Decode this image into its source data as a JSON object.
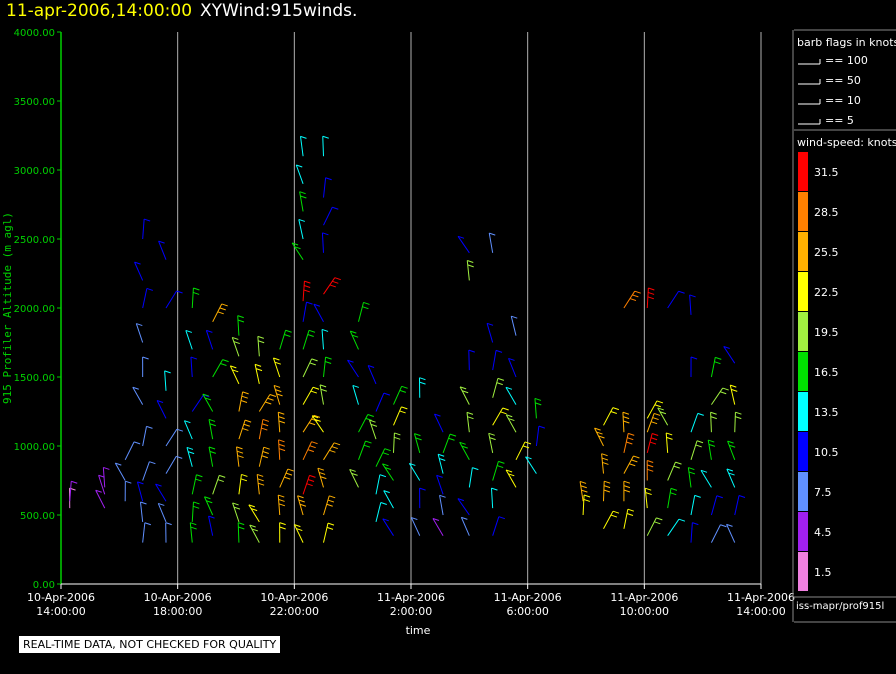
{
  "header": {
    "timestamp": "11-apr-2006,14:00:00",
    "product": "XYWind:915winds."
  },
  "quality_note": "REAL-TIME DATA, NOT CHECKED FOR QUALITY",
  "source_label": "iss-mapr/prof915l",
  "colors": {
    "background": "#000000",
    "axis": "#00d000",
    "gridline": "#b0b0b0"
  },
  "legend": {
    "barb_title": "barb flags in knots",
    "barbs": [
      "== 100",
      "== 50",
      "== 10",
      "== 5"
    ],
    "speed_title": "wind-speed: knots",
    "speed_bins": [
      {
        "label": "31.5",
        "color": "#ff0000"
      },
      {
        "label": "28.5",
        "color": "#ff8000"
      },
      {
        "label": "25.5",
        "color": "#ffb000"
      },
      {
        "label": "22.5",
        "color": "#ffff00"
      },
      {
        "label": "19.5",
        "color": "#a0f040"
      },
      {
        "label": "16.5",
        "color": "#00e000"
      },
      {
        "label": "13.5",
        "color": "#00ffff"
      },
      {
        "label": "10.5",
        "color": "#0000ff"
      },
      {
        "label": "7.5",
        "color": "#6090ff"
      },
      {
        "label": "4.5",
        "color": "#a020f0"
      },
      {
        "label": "1.5",
        "color": "#f080e0"
      }
    ]
  },
  "chart_data": {
    "type": "scatter",
    "subtype": "wind-barb time-height plot",
    "ylabel": "915 Profiler Altitude (m agl)",
    "xlabel": "time",
    "ylim": [
      0,
      4000
    ],
    "yticks": [
      "0.00",
      "500.00",
      "1000.00",
      "1500.00",
      "2000.00",
      "2500.00",
      "3000.00",
      "3500.00",
      "4000.00"
    ],
    "xlim_hours": [
      0,
      24
    ],
    "xticks": [
      {
        "date": "10-Apr-2006",
        "time": "14:00:00",
        "hour": 0
      },
      {
        "date": "10-Apr-2006",
        "time": "18:00:00",
        "hour": 4
      },
      {
        "date": "10-Apr-2006",
        "time": "22:00:00",
        "hour": 8
      },
      {
        "date": "11-Apr-2006",
        "time": "2:00:00",
        "hour": 12
      },
      {
        "date": "11-Apr-2006",
        "time": "6:00:00",
        "hour": 16
      },
      {
        "date": "11-Apr-2006",
        "time": "10:00:00",
        "hour": 20
      },
      {
        "date": "11-Apr-2006",
        "time": "14:00:00",
        "hour": 24
      }
    ],
    "gridlines_x": true,
    "grid_y": false,
    "profiles": [
      {
        "hour": 0.3,
        "levels": [
          [
            550,
            3
          ],
          [
            600,
            4
          ]
        ]
      },
      {
        "hour": 1.5,
        "levels": [
          [
            550,
            5
          ],
          [
            650,
            4
          ],
          [
            700,
            6
          ]
        ]
      },
      {
        "hour": 2.2,
        "levels": [
          [
            600,
            8
          ],
          [
            750,
            9
          ],
          [
            900,
            8
          ]
        ]
      },
      {
        "hour": 2.8,
        "levels": [
          [
            300,
            9
          ],
          [
            450,
            9
          ],
          [
            600,
            10
          ],
          [
            750,
            9
          ],
          [
            1000,
            7
          ],
          [
            1300,
            8
          ],
          [
            1500,
            9
          ],
          [
            1750,
            8
          ],
          [
            2000,
            11
          ],
          [
            2200,
            12
          ],
          [
            2500,
            12
          ]
        ]
      },
      {
        "hour": 3.6,
        "levels": [
          [
            300,
            8
          ],
          [
            450,
            9
          ],
          [
            600,
            10
          ],
          [
            800,
            9
          ],
          [
            1000,
            8
          ],
          [
            1200,
            11
          ],
          [
            1400,
            13
          ],
          [
            2000,
            12
          ],
          [
            2350,
            10
          ]
        ]
      },
      {
        "hour": 4.5,
        "levels": [
          [
            300,
            16
          ],
          [
            450,
            17
          ],
          [
            650,
            16
          ],
          [
            850,
            15
          ],
          [
            1050,
            14
          ],
          [
            1250,
            12
          ],
          [
            1500,
            11
          ],
          [
            1700,
            13
          ],
          [
            2000,
            18
          ]
        ]
      },
      {
        "hour": 5.2,
        "levels": [
          [
            350,
            12
          ],
          [
            500,
            18
          ],
          [
            650,
            19
          ],
          [
            850,
            17
          ],
          [
            1050,
            16
          ],
          [
            1250,
            18
          ],
          [
            1500,
            17
          ],
          [
            1700,
            12
          ],
          [
            1900,
            26
          ]
        ]
      },
      {
        "hour": 6.1,
        "levels": [
          [
            300,
            16
          ],
          [
            450,
            19
          ],
          [
            650,
            22
          ],
          [
            850,
            25
          ],
          [
            1050,
            27
          ],
          [
            1250,
            26
          ],
          [
            1450,
            24
          ],
          [
            1650,
            20
          ],
          [
            1800,
            17
          ]
        ]
      },
      {
        "hour": 6.8,
        "levels": [
          [
            300,
            19
          ],
          [
            450,
            22
          ],
          [
            650,
            25
          ],
          [
            850,
            27
          ],
          [
            1050,
            28
          ],
          [
            1250,
            26
          ],
          [
            1450,
            23
          ],
          [
            1650,
            21
          ]
        ]
      },
      {
        "hour": 7.5,
        "levels": [
          [
            300,
            22
          ],
          [
            500,
            25
          ],
          [
            700,
            27
          ],
          [
            900,
            28
          ],
          [
            1100,
            27
          ],
          [
            1300,
            26
          ],
          [
            1500,
            22
          ],
          [
            1700,
            18
          ]
        ]
      },
      {
        "hour": 8.3,
        "levels": [
          [
            300,
            23
          ],
          [
            500,
            26
          ],
          [
            650,
            31
          ],
          [
            900,
            28
          ],
          [
            1100,
            27
          ],
          [
            1300,
            24
          ],
          [
            1500,
            20
          ],
          [
            1700,
            16
          ],
          [
            1900,
            12
          ],
          [
            2050,
            32
          ],
          [
            2350,
            16
          ],
          [
            2500,
            14
          ],
          [
            2700,
            16
          ],
          [
            2900,
            14
          ],
          [
            3100,
            13
          ]
        ]
      },
      {
        "hour": 9.0,
        "levels": [
          [
            300,
            24
          ],
          [
            500,
            26
          ],
          [
            700,
            27
          ],
          [
            900,
            26
          ],
          [
            1100,
            24
          ],
          [
            1300,
            21
          ],
          [
            1500,
            17
          ],
          [
            1700,
            14
          ],
          [
            1900,
            11
          ],
          [
            2100,
            31
          ],
          [
            2400,
            12
          ],
          [
            2600,
            12
          ],
          [
            2800,
            12
          ],
          [
            3100,
            13
          ]
        ]
      },
      {
        "hour": 10.2,
        "levels": [
          [
            700,
            20
          ],
          [
            900,
            18
          ],
          [
            1100,
            16
          ],
          [
            1300,
            13
          ],
          [
            1500,
            12
          ],
          [
            1700,
            16
          ],
          [
            1900,
            18
          ]
        ]
      },
      {
        "hour": 10.8,
        "levels": [
          [
            450,
            14
          ],
          [
            650,
            13
          ],
          [
            850,
            16
          ],
          [
            1050,
            19
          ],
          [
            1250,
            12
          ],
          [
            1450,
            10
          ]
        ]
      },
      {
        "hour": 11.4,
        "levels": [
          [
            350,
            12
          ],
          [
            550,
            14
          ],
          [
            750,
            16
          ],
          [
            950,
            20
          ],
          [
            1150,
            22
          ],
          [
            1300,
            18
          ]
        ]
      },
      {
        "hour": 12.3,
        "levels": [
          [
            350,
            9
          ],
          [
            550,
            11
          ],
          [
            750,
            14
          ],
          [
            950,
            17
          ],
          [
            1350,
            15
          ]
        ]
      },
      {
        "hour": 13.1,
        "levels": [
          [
            350,
            6
          ],
          [
            500,
            9
          ],
          [
            650,
            12
          ],
          [
            800,
            15
          ],
          [
            950,
            18
          ],
          [
            1100,
            12
          ]
        ]
      },
      {
        "hour": 14.0,
        "levels": [
          [
            350,
            7
          ],
          [
            500,
            11
          ],
          [
            700,
            14
          ],
          [
            900,
            16
          ],
          [
            1100,
            19
          ],
          [
            1300,
            21
          ],
          [
            1550,
            10
          ],
          [
            2200,
            19
          ],
          [
            2400,
            10
          ]
        ]
      },
      {
        "hour": 14.8,
        "levels": [
          [
            350,
            11
          ],
          [
            550,
            14
          ],
          [
            750,
            18
          ],
          [
            950,
            21
          ],
          [
            1150,
            23
          ],
          [
            1350,
            20
          ],
          [
            1550,
            11
          ],
          [
            1750,
            12
          ],
          [
            2400,
            9
          ]
        ]
      },
      {
        "hour": 15.6,
        "levels": [
          [
            700,
            24
          ],
          [
            900,
            23
          ],
          [
            1100,
            20
          ],
          [
            1300,
            13
          ],
          [
            1500,
            12
          ],
          [
            1800,
            9
          ]
        ]
      },
      {
        "hour": 16.3,
        "levels": [
          [
            800,
            14
          ],
          [
            1000,
            11
          ],
          [
            1200,
            16
          ]
        ]
      },
      {
        "hour": 17.9,
        "levels": [
          [
            600,
            25
          ],
          [
            500,
            24
          ]
        ]
      },
      {
        "hour": 18.6,
        "levels": [
          [
            400,
            24
          ],
          [
            600,
            26
          ],
          [
            800,
            27
          ],
          [
            1000,
            25
          ],
          [
            1150,
            22
          ]
        ]
      },
      {
        "hour": 19.3,
        "levels": [
          [
            400,
            22
          ],
          [
            600,
            25
          ],
          [
            800,
            27
          ],
          [
            950,
            28
          ],
          [
            1100,
            26
          ],
          [
            2000,
            30
          ]
        ]
      },
      {
        "hour": 20.1,
        "levels": [
          [
            350,
            20
          ],
          [
            550,
            23
          ],
          [
            750,
            29
          ],
          [
            950,
            31
          ],
          [
            1100,
            27
          ],
          [
            1200,
            24
          ],
          [
            2000,
            31
          ]
        ]
      },
      {
        "hour": 20.8,
        "levels": [
          [
            350,
            13
          ],
          [
            550,
            17
          ],
          [
            750,
            21
          ],
          [
            950,
            23
          ],
          [
            1150,
            20
          ],
          [
            2000,
            10
          ]
        ]
      },
      {
        "hour": 21.6,
        "levels": [
          [
            300,
            10
          ],
          [
            500,
            13
          ],
          [
            700,
            16
          ],
          [
            900,
            19
          ],
          [
            1100,
            14
          ],
          [
            1500,
            10
          ],
          [
            1950,
            11
          ]
        ]
      },
      {
        "hour": 22.3,
        "levels": [
          [
            300,
            8
          ],
          [
            500,
            11
          ],
          [
            700,
            14
          ],
          [
            900,
            17
          ],
          [
            1100,
            19
          ],
          [
            1300,
            20
          ],
          [
            1500,
            18
          ]
        ]
      },
      {
        "hour": 23.1,
        "levels": [
          [
            300,
            9
          ],
          [
            500,
            12
          ],
          [
            700,
            15
          ],
          [
            900,
            17
          ],
          [
            1100,
            19
          ],
          [
            1300,
            22
          ],
          [
            1600,
            10
          ]
        ]
      }
    ]
  }
}
